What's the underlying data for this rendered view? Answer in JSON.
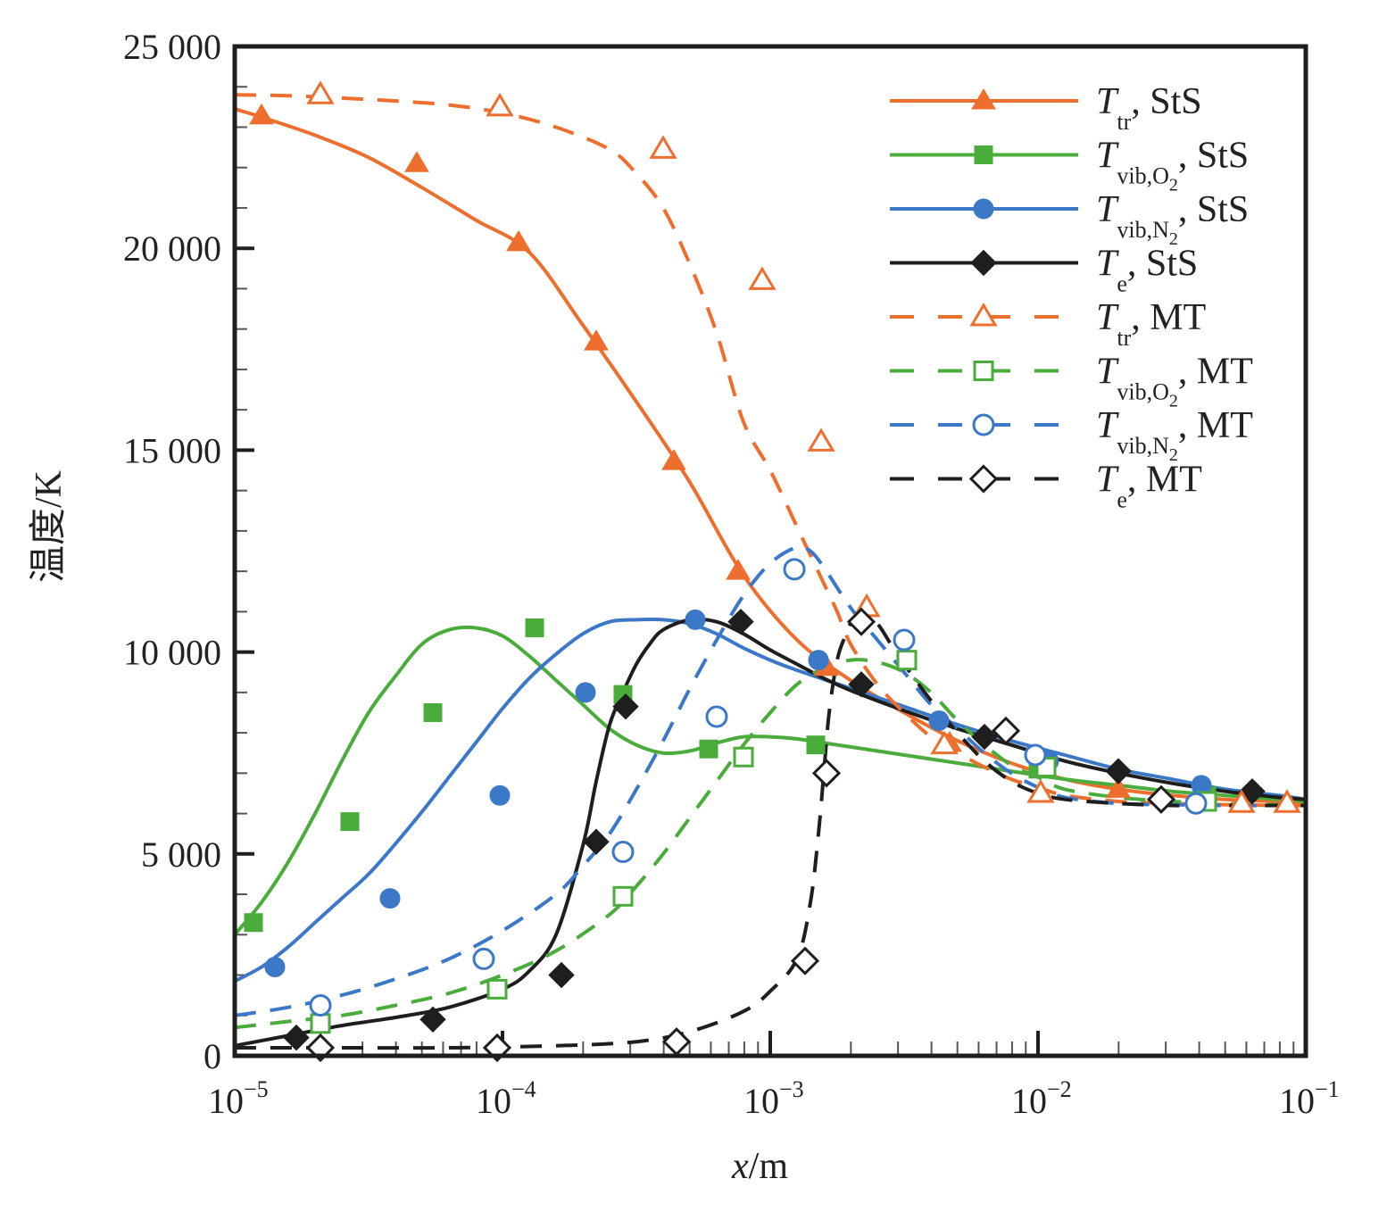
{
  "chart_data": {
    "type": "line",
    "title": "",
    "xlabel": "x/m",
    "ylabel": "温度/K",
    "xscale": "log",
    "xlim": [
      1e-05,
      0.1
    ],
    "ylim": [
      0,
      25000
    ],
    "grid": false,
    "legend_position": "top-right",
    "x_tick_labels": [
      {
        "base": "10",
        "exp": "−5",
        "value": -5
      },
      {
        "base": "10",
        "exp": "−4",
        "value": -4
      },
      {
        "base": "10",
        "exp": "−3",
        "value": -3
      },
      {
        "base": "10",
        "exp": "−2",
        "value": -2
      },
      {
        "base": "10",
        "exp": "−1",
        "value": -1
      }
    ],
    "y_tick_labels": [
      {
        "label": "0",
        "value": 0
      },
      {
        "label": "5 000",
        "value": 5000
      },
      {
        "label": "10 000",
        "value": 10000
      },
      {
        "label": "15 000",
        "value": 15000
      },
      {
        "label": "20 000",
        "value": 20000
      },
      {
        "label": "25 000",
        "value": 25000
      }
    ],
    "series": [
      {
        "name": "T_tr, StS",
        "main": "T",
        "sub": "tr",
        "suffix": ", StS",
        "color": "#ee6f2d",
        "dash": false,
        "marker": "triangle",
        "filled": true,
        "curve_log10x": [
          -5,
          -4.9,
          -4.7,
          -4.5,
          -4.3,
          -4.1,
          -3.9,
          -3.7,
          -3.5,
          -3.3,
          -3.1,
          -2.9,
          -2.7,
          -2.5,
          -2.3,
          -2.1,
          -1.9,
          -1.7,
          -1.5,
          -1.3,
          -1.1,
          -1.0
        ],
        "curve_T": [
          23450,
          23250,
          22800,
          22250,
          21500,
          20700,
          19900,
          18100,
          16200,
          14200,
          11900,
          10300,
          9300,
          8500,
          7800,
          7250,
          6850,
          6600,
          6450,
          6350,
          6300,
          6280
        ],
        "markers_log10x": [
          -4.9,
          -4.32,
          -3.94,
          -3.65,
          -3.36,
          -3.12,
          -2.79,
          -2.33,
          -1.7,
          -1.07
        ],
        "markers_T": [
          23280,
          22100,
          20140,
          17680,
          14720,
          12000,
          9620,
          7740,
          6600,
          6290
        ]
      },
      {
        "name": "T_vib,O2, StS",
        "main": "T",
        "sub": "vib,O",
        "sub2": "2",
        "suffix": ", StS",
        "color": "#4aac3a",
        "dash": false,
        "marker": "square",
        "filled": true,
        "curve_log10x": [
          -5,
          -4.9,
          -4.8,
          -4.7,
          -4.6,
          -4.5,
          -4.4,
          -4.3,
          -4.2,
          -4.1,
          -4.0,
          -3.9,
          -3.8,
          -3.7,
          -3.6,
          -3.5,
          -3.4,
          -3.3,
          -3.2,
          -3.1,
          -3.0,
          -2.9,
          -2.8,
          -2.7,
          -2.5,
          -2.3,
          -2.1,
          -1.9,
          -1.7,
          -1.5,
          -1.3,
          -1.1,
          -1.0
        ],
        "curve_T": [
          3000,
          3800,
          4800,
          6000,
          7300,
          8500,
          9400,
          10200,
          10550,
          10600,
          10400,
          9900,
          9300,
          8700,
          8100,
          7700,
          7500,
          7550,
          7750,
          7900,
          7900,
          7850,
          7750,
          7650,
          7450,
          7250,
          7050,
          6850,
          6700,
          6550,
          6450,
          6350,
          6300
        ],
        "markers_log10x": [
          -4.93,
          -4.57,
          -4.26,
          -3.88,
          -3.55,
          -3.23,
          -2.83,
          -2.0,
          -1.37
        ],
        "markers_T": [
          3300,
          5800,
          8500,
          10600,
          8950,
          7600,
          7700,
          7100,
          6450
        ]
      },
      {
        "name": "T_vib,N2, StS",
        "main": "T",
        "sub": "vib,N",
        "sub2": "2",
        "suffix": ", StS",
        "color": "#3b78c8",
        "dash": false,
        "marker": "circle",
        "filled": true,
        "curve_log10x": [
          -5,
          -4.9,
          -4.8,
          -4.7,
          -4.6,
          -4.5,
          -4.4,
          -4.3,
          -4.2,
          -4.1,
          -4.0,
          -3.9,
          -3.8,
          -3.7,
          -3.6,
          -3.5,
          -3.4,
          -3.3,
          -3.2,
          -3.1,
          -3.0,
          -2.9,
          -2.7,
          -2.5,
          -2.3,
          -2.1,
          -1.9,
          -1.7,
          -1.5,
          -1.3,
          -1.1,
          -1.0
        ],
        "curve_T": [
          1850,
          2200,
          2700,
          3300,
          3900,
          4500,
          5250,
          6050,
          6900,
          7750,
          8600,
          9350,
          9950,
          10450,
          10750,
          10800,
          10800,
          10700,
          10450,
          10100,
          9800,
          9550,
          9100,
          8650,
          8200,
          7800,
          7450,
          7100,
          6850,
          6600,
          6450,
          6350
        ],
        "markers_log10x": [
          -4.85,
          -4.42,
          -4.01,
          -3.69,
          -3.28,
          -2.82,
          -2.37,
          -1.96,
          -1.39
        ],
        "markers_T": [
          2200,
          3900,
          6450,
          9000,
          10800,
          9800,
          8300,
          7300,
          6700
        ]
      },
      {
        "name": "T_e, StS",
        "main": "T",
        "sub": "e",
        "suffix": ", StS",
        "color": "#1e1e1e",
        "dash": false,
        "marker": "diamond",
        "filled": true,
        "curve_log10x": [
          -5,
          -4.8,
          -4.6,
          -4.4,
          -4.2,
          -4.0,
          -3.9,
          -3.8,
          -3.7,
          -3.65,
          -3.6,
          -3.55,
          -3.5,
          -3.45,
          -3.4,
          -3.3,
          -3.2,
          -3.1,
          -3.0,
          -2.9,
          -2.8,
          -2.7,
          -2.5,
          -2.3,
          -2.1,
          -1.9,
          -1.7,
          -1.5,
          -1.3,
          -1.1,
          -1.0
        ],
        "curve_T": [
          250,
          500,
          750,
          950,
          1200,
          1650,
          2100,
          3000,
          5200,
          6800,
          8200,
          9000,
          9700,
          10200,
          10550,
          10800,
          10750,
          10450,
          10050,
          9700,
          9350,
          9050,
          8550,
          8100,
          7700,
          7300,
          7000,
          6750,
          6550,
          6400,
          6350
        ],
        "markers_log10x": [
          -4.77,
          -4.26,
          -3.78,
          -3.65,
          -3.54,
          -3.11,
          -2.66,
          -2.2,
          -1.7,
          -1.2
        ],
        "markers_T": [
          450,
          900,
          2000,
          5300,
          8650,
          10750,
          9200,
          7900,
          7050,
          6550
        ]
      },
      {
        "name": "T_tr, MT",
        "main": "T",
        "sub": "tr",
        "suffix": ", MT",
        "color": "#ee6f2d",
        "dash": true,
        "marker": "triangle",
        "filled": false,
        "curve_log10x": [
          -5,
          -4.8,
          -4.6,
          -4.4,
          -4.2,
          -4.0,
          -3.8,
          -3.6,
          -3.5,
          -3.4,
          -3.3,
          -3.2,
          -3.1,
          -3.0,
          -2.9,
          -2.8,
          -2.75,
          -2.7,
          -2.6,
          -2.5,
          -2.4,
          -2.3,
          -2.2,
          -2.1,
          -2.0,
          -1.9,
          -1.7,
          -1.5,
          -1.3,
          -1.1,
          -1.0
        ],
        "curve_T": [
          23800,
          23780,
          23720,
          23650,
          23550,
          23350,
          23000,
          22450,
          21850,
          21000,
          19600,
          17900,
          15700,
          14500,
          13100,
          11700,
          11000,
          10200,
          9200,
          8500,
          7900,
          7500,
          7150,
          6850,
          6650,
          6450,
          6300,
          6250,
          6220,
          6200,
          6200
        ],
        "markers_log10x": [
          -4.68,
          -4.01,
          -3.4,
          -3.03,
          -2.81,
          -2.64,
          -2.35,
          -1.99,
          -1.24,
          -1.07
        ],
        "markers_T": [
          23800,
          23500,
          22450,
          19200,
          15200,
          11100,
          7700,
          6500,
          6250,
          6250
        ]
      },
      {
        "name": "T_vib,O2, MT",
        "main": "T",
        "sub": "vib,O",
        "sub2": "2",
        "suffix": ", MT",
        "color": "#4aac3a",
        "dash": true,
        "marker": "square",
        "filled": false,
        "curve_log10x": [
          -5,
          -4.8,
          -4.6,
          -4.4,
          -4.2,
          -4.0,
          -3.8,
          -3.6,
          -3.5,
          -3.4,
          -3.3,
          -3.2,
          -3.1,
          -3.0,
          -2.9,
          -2.8,
          -2.7,
          -2.6,
          -2.5,
          -2.4,
          -2.3,
          -2.2,
          -2.1,
          -2.0,
          -1.9,
          -1.7,
          -1.5,
          -1.3,
          -1.1,
          -1.0
        ],
        "curve_T": [
          700,
          850,
          1000,
          1250,
          1550,
          2000,
          2600,
          3500,
          4200,
          5000,
          5900,
          6800,
          7700,
          8500,
          9200,
          9600,
          9800,
          9750,
          9500,
          9000,
          8300,
          7700,
          7200,
          6900,
          6600,
          6400,
          6300,
          6250,
          6220,
          6200
        ],
        "markers_log10x": [
          -4.68,
          -4.02,
          -3.55,
          -3.1,
          -2.49,
          -1.97,
          -1.37
        ],
        "markers_T": [
          800,
          1650,
          3950,
          7400,
          9800,
          7150,
          6300
        ]
      },
      {
        "name": "T_vib,N2, MT",
        "main": "T",
        "sub": "vib,N",
        "sub2": "2",
        "suffix": ", MT",
        "color": "#3b78c8",
        "dash": true,
        "marker": "circle",
        "filled": false,
        "curve_log10x": [
          -5,
          -4.8,
          -4.6,
          -4.4,
          -4.2,
          -4.0,
          -3.8,
          -3.7,
          -3.6,
          -3.5,
          -3.4,
          -3.3,
          -3.2,
          -3.1,
          -3.0,
          -2.9,
          -2.85,
          -2.8,
          -2.7,
          -2.6,
          -2.5,
          -2.4,
          -2.3,
          -2.2,
          -2.1,
          -2.0,
          -1.9,
          -1.7,
          -1.5,
          -1.3,
          -1.1,
          -1.0
        ],
        "curve_T": [
          1000,
          1200,
          1500,
          1900,
          2400,
          3100,
          4000,
          4700,
          5500,
          6600,
          7800,
          9100,
          10300,
          11400,
          12200,
          12600,
          12500,
          12100,
          11100,
          10300,
          9500,
          8700,
          8100,
          7500,
          7000,
          6650,
          6400,
          6250,
          6220,
          6200,
          6200,
          6200
        ],
        "markers_log10x": [
          -4.68,
          -4.07,
          -3.55,
          -3.2,
          -2.91,
          -2.5,
          -2.01,
          -1.41
        ],
        "markers_T": [
          1250,
          2400,
          5050,
          8400,
          12050,
          10300,
          7450,
          6250
        ]
      },
      {
        "name": "T_e, MT",
        "main": "T",
        "sub": "e",
        "suffix": ", MT",
        "color": "#1e1e1e",
        "dash": true,
        "marker": "diamond",
        "filled": false,
        "curve_log10x": [
          -5,
          -4.6,
          -4.2,
          -3.8,
          -3.5,
          -3.3,
          -3.1,
          -3.0,
          -2.9,
          -2.85,
          -2.82,
          -2.8,
          -2.78,
          -2.75,
          -2.72,
          -2.7,
          -2.65,
          -2.6,
          -2.55,
          -2.5,
          -2.4,
          -2.3,
          -2.2,
          -2.1,
          -2.0,
          -1.9,
          -1.7,
          -1.5,
          -1.3,
          -1.1,
          -1.0
        ],
        "curve_T": [
          200,
          200,
          200,
          250,
          350,
          600,
          1100,
          1600,
          2400,
          3800,
          5500,
          7000,
          8500,
          9800,
          10400,
          10700,
          10900,
          10700,
          10200,
          9700,
          8800,
          8000,
          7300,
          6800,
          6500,
          6350,
          6250,
          6200,
          6200,
          6200,
          6200
        ],
        "markers_log10x": [
          -4.68,
          -4.02,
          -3.35,
          -2.87,
          -2.79,
          -2.66,
          -2.12,
          -1.54
        ],
        "markers_T": [
          200,
          200,
          350,
          2350,
          7000,
          10750,
          8050,
          6350
        ]
      }
    ]
  }
}
